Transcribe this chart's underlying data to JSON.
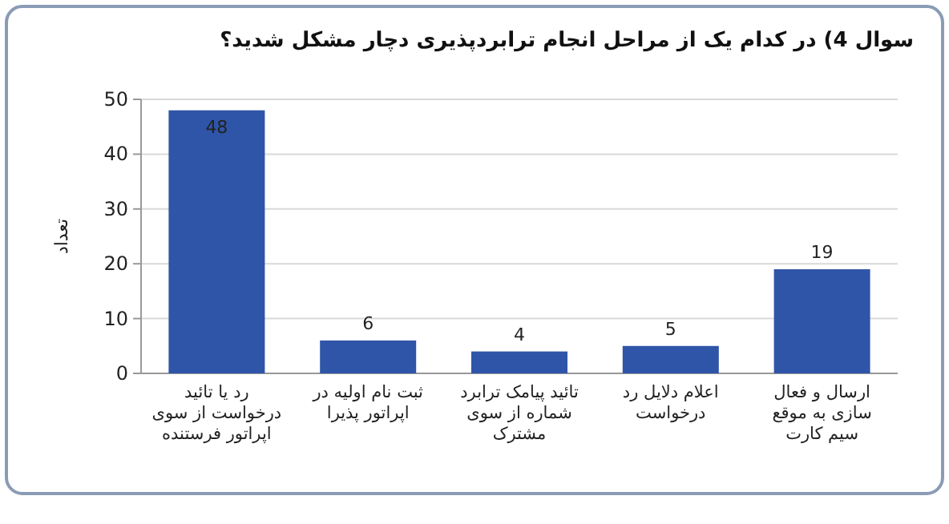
{
  "chart_data": {
    "type": "bar",
    "title": "سوال 4) در کدام یک از مراحل انجام ترابردپذیری دچار مشکل شدید؟",
    "ylabel": "تعداد",
    "categories": [
      "رد یا تائید درخواست از سوی اپراتور فرستنده",
      "ثبت نام اولیه در اپراتور پذیرا",
      "تائید پیامک ترابرد شماره از سوی مشترک",
      "اعلام دلایل رد درخواست",
      "ارسال و فعال سازی به موقع سیم کارت"
    ],
    "values": [
      48,
      6,
      4,
      5,
      19
    ],
    "color": "#2f55a8",
    "ylim": [
      0,
      50
    ],
    "yticks": [
      0,
      10,
      20,
      30,
      40,
      50
    ],
    "grid": "y",
    "data_labels": true
  }
}
